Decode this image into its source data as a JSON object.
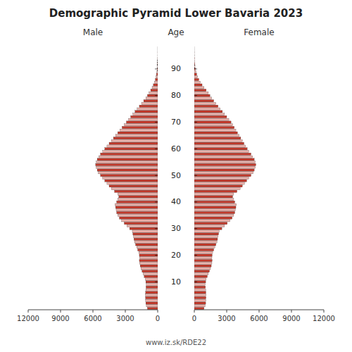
{
  "chart_data": {
    "type": "pyramid",
    "title": "Demographic Pyramid Lower Bavaria 2023",
    "ylabel": "Age",
    "annotations": [
      "www.iz.sk/RDE22"
    ],
    "orientation": "horizontal",
    "y": [
      0,
      1,
      2,
      3,
      4,
      5,
      6,
      7,
      8,
      9,
      10,
      11,
      12,
      13,
      14,
      15,
      16,
      17,
      18,
      19,
      20,
      21,
      22,
      23,
      24,
      25,
      26,
      27,
      28,
      29,
      30,
      31,
      32,
      33,
      34,
      35,
      36,
      37,
      38,
      39,
      40,
      41,
      42,
      43,
      44,
      45,
      46,
      47,
      48,
      49,
      50,
      51,
      52,
      53,
      54,
      55,
      56,
      57,
      58,
      59,
      60,
      61,
      62,
      63,
      64,
      65,
      66,
      67,
      68,
      69,
      70,
      71,
      72,
      73,
      74,
      75,
      76,
      77,
      78,
      79,
      80,
      81,
      82,
      83,
      84,
      85,
      86,
      87,
      88,
      89,
      90,
      91,
      92,
      93,
      94,
      95,
      96,
      97,
      98,
      99
    ],
    "ylim": [
      -0.5,
      99.5
    ],
    "yticks": [
      10,
      20,
      30,
      40,
      50,
      60,
      70,
      80,
      90
    ],
    "xlim": [
      0,
      12000
    ],
    "xticks": [
      0,
      3000,
      6000,
      9000,
      12000
    ],
    "colors": [
      "#c0392b",
      "#e8b0aa",
      "#c0392b",
      "#e8b0aa",
      "#c0392b",
      "#e8b0aa",
      "#c0392b",
      "#e8b0aa",
      "#c0392b",
      "#e8b0aa",
      "#c0392b",
      "#e8b0aa",
      "#c0392b",
      "#e8b0aa",
      "#c0392b",
      "#e8b0aa",
      "#c0392b",
      "#e8b0aa",
      "#c0392b",
      "#e8b0aa",
      "#c0392b",
      "#e8b0aa",
      "#c0392b",
      "#e8b0aa",
      "#c0392b",
      "#e8b0aa",
      "#c0392b",
      "#e8b0aa",
      "#c0392b",
      "#e8b0aa",
      "#c0392b",
      "#e8b0aa",
      "#c0392b",
      "#e8b0aa",
      "#c0392b",
      "#e8b0aa",
      "#c0392b",
      "#e8b0aa",
      "#c0392b",
      "#e8b0aa",
      "#c0392b",
      "#e8b0aa",
      "#c0392b",
      "#e8b0aa",
      "#c0392b",
      "#e8b0aa",
      "#c0392b",
      "#e8b0aa",
      "#c0392b",
      "#e8b0aa",
      "#c0392b",
      "#e8b0aa",
      "#c0392b",
      "#e8b0aa",
      "#c0392b",
      "#e8b0aa",
      "#c0392b",
      "#e8b0aa",
      "#c0392b",
      "#e8b0aa",
      "#c0392b",
      "#e8b0aa",
      "#c0392b",
      "#e8b0aa",
      "#c0392b",
      "#e8b0aa",
      "#c0392b",
      "#e8b0aa",
      "#c0392b",
      "#e8b0aa",
      "#c0392b",
      "#e8b0aa",
      "#c0392b",
      "#e8b0aa",
      "#c0392b",
      "#e8b0aa",
      "#c0392b",
      "#e8b0aa",
      "#c0392b",
      "#e8b0aa",
      "#c0392b",
      "#e8b0aa",
      "#c0392b",
      "#e8b0aa",
      "#c0392b",
      "#e8b0aa",
      "#c0392b",
      "#e8b0aa",
      "#c0392b",
      "#e8b0aa",
      "#c0392b",
      "#e8b0aa",
      "#c0392b",
      "#e8b0aa",
      "#c0392b",
      "#e8b0aa",
      "#c0392b",
      "#e8b0aa",
      "#c0392b",
      "#e8b0aa"
    ],
    "series": [
      {
        "name": "Male",
        "values": [
          950,
          1050,
          1100,
          1120,
          1130,
          1140,
          1120,
          1100,
          1080,
          1060,
          1100,
          1150,
          1250,
          1350,
          1450,
          1550,
          1620,
          1680,
          1700,
          1680,
          1700,
          1750,
          1850,
          1950,
          2050,
          2150,
          2200,
          2250,
          2300,
          2350,
          2600,
          2850,
          3100,
          3350,
          3550,
          3700,
          3800,
          3850,
          3900,
          3950,
          3800,
          3700,
          3600,
          3700,
          4000,
          4300,
          4500,
          4700,
          4900,
          5100,
          5300,
          5500,
          5600,
          5700,
          5750,
          5700,
          5600,
          5450,
          5300,
          5100,
          4900,
          4700,
          4500,
          4300,
          4100,
          3900,
          3700,
          3500,
          3300,
          3100,
          2900,
          2700,
          2500,
          2300,
          2100,
          1900,
          1700,
          1500,
          1300,
          1100,
          950,
          800,
          650,
          520,
          400,
          300,
          220,
          160,
          110,
          70,
          45,
          28,
          18,
          10,
          6,
          3,
          2,
          1,
          1,
          0
        ]
      },
      {
        "name": "Female",
        "values": [
          900,
          1000,
          1050,
          1070,
          1080,
          1090,
          1070,
          1050,
          1030,
          1010,
          1050,
          1100,
          1200,
          1300,
          1400,
          1500,
          1570,
          1630,
          1650,
          1630,
          1650,
          1700,
          1800,
          1900,
          2000,
          2100,
          2150,
          2200,
          2250,
          2300,
          2550,
          2800,
          3050,
          3300,
          3500,
          3650,
          3750,
          3800,
          3850,
          3900,
          3750,
          3650,
          3550,
          3650,
          3950,
          4250,
          4450,
          4650,
          4850,
          5050,
          5250,
          5450,
          5550,
          5650,
          5700,
          5650,
          5550,
          5400,
          5250,
          5050,
          4900,
          4750,
          4600,
          4450,
          4300,
          4150,
          4000,
          3850,
          3700,
          3550,
          3400,
          3200,
          3000,
          2800,
          2600,
          2400,
          2200,
          2000,
          1800,
          1600,
          1450,
          1300,
          1100,
          900,
          720,
          560,
          420,
          310,
          220,
          150,
          100,
          65,
          40,
          24,
          14,
          8,
          4,
          2,
          1,
          0
        ]
      }
    ]
  }
}
